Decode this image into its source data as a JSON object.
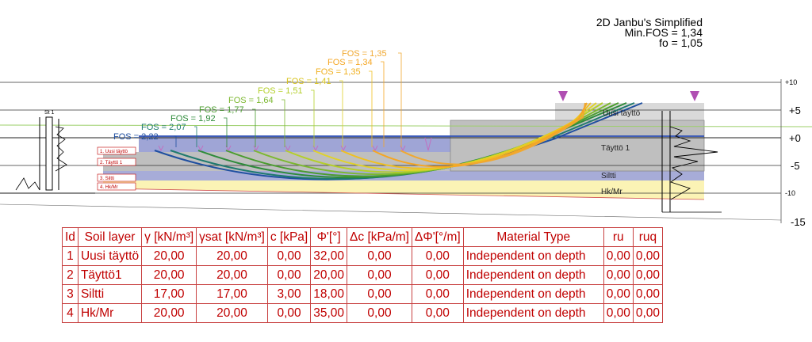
{
  "header": {
    "method": "2D Janbu's Simplified",
    "min_fos": "Min.FOS = 1,34",
    "fo": "fo = 1,05"
  },
  "axis": {
    "ticks": [
      "+10",
      "+5",
      "+0",
      "-5",
      "-10",
      "-15"
    ]
  },
  "fos_labels": [
    "FOS = 2,22",
    "FOS = 2,07",
    "FOS = 1,92",
    "FOS = 1,77",
    "FOS = 1,64",
    "FOS = 1,51",
    "FOS = 1,41",
    "FOS = 1,35",
    "FOS = 1,34",
    "FOS = 1,35"
  ],
  "layer_labels": {
    "uusi_tayttö": "Uusi täyttö",
    "tayttö1": "Täyttö 1",
    "siltti": "Siltti",
    "hkmr": "Hk/Mr"
  },
  "left_tags": [
    "1. Uusi täyttö",
    "2. Täyttö 1",
    "3. Siltti",
    "4. Hk/Mr"
  ],
  "borehole_label": "St 1",
  "colors": {
    "table_red": "#c00000",
    "fill_tayttö": "#bfbfbf",
    "fill_uusi": "#d4d4d4",
    "fill_siltti": "#a7acd8",
    "fill_hkmr": "#fbf3b5",
    "blue_line": "#2e4fb5",
    "load_marker": "#b04fb2"
  },
  "table": {
    "headers": [
      "Id",
      "Soil layer",
      "γ [kN/m³]",
      "γsat [kN/m³]",
      "c [kPa]",
      "Φ'[°]",
      "Δc [kPa/m]",
      "ΔΦ'[°/m]",
      "Material Type",
      "ru",
      "ruq"
    ],
    "rows": [
      [
        "1",
        "Uusi täyttö",
        "20,00",
        "20,00",
        "0,00",
        "32,00",
        "0,00",
        "0,00",
        "Independent on depth",
        "0,00",
        "0,00"
      ],
      [
        "2",
        "Täyttö1",
        "20,00",
        "20,00",
        "0,00",
        "20,00",
        "0,00",
        "0,00",
        "Independent on depth",
        "0,00",
        "0,00"
      ],
      [
        "3",
        "Siltti",
        "17,00",
        "17,00",
        "3,00",
        "18,00",
        "0,00",
        "0,00",
        "Independent on depth",
        "0,00",
        "0,00"
      ],
      [
        "4",
        "Hk/Mr",
        "20,00",
        "20,00",
        "0,00",
        "35,00",
        "0,00",
        "0,00",
        "Independent on depth",
        "0,00",
        "0,00"
      ]
    ]
  }
}
